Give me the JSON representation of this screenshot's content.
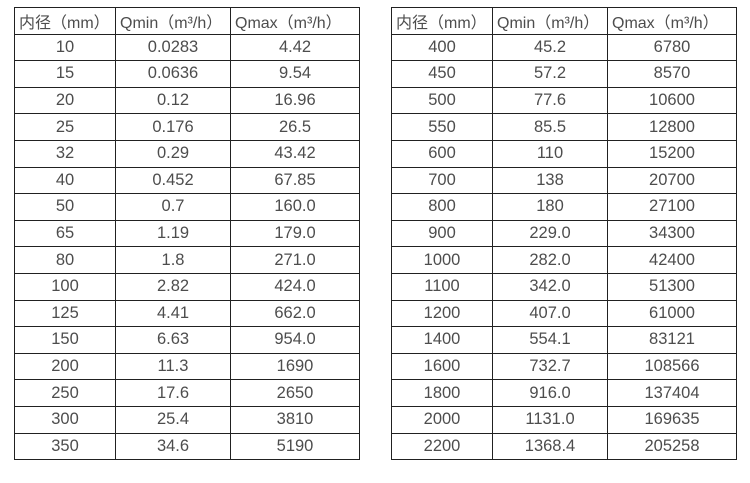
{
  "tables": [
    {
      "name": "diameter-flow-table-small",
      "headers": [
        "内径（mm）",
        "Qmin（m³/h）",
        "Qmax（m³/h）"
      ],
      "rows": [
        [
          "10",
          "0.0283",
          "4.42"
        ],
        [
          "15",
          "0.0636",
          "9.54"
        ],
        [
          "20",
          "0.12",
          "16.96"
        ],
        [
          "25",
          "0.176",
          "26.5"
        ],
        [
          "32",
          "0.29",
          "43.42"
        ],
        [
          "40",
          "0.452",
          "67.85"
        ],
        [
          "50",
          "0.7",
          "160.0"
        ],
        [
          "65",
          "1.19",
          "179.0"
        ],
        [
          "80",
          "1.8",
          "271.0"
        ],
        [
          "100",
          "2.82",
          "424.0"
        ],
        [
          "125",
          "4.41",
          "662.0"
        ],
        [
          "150",
          "6.63",
          "954.0"
        ],
        [
          "200",
          "11.3",
          "1690"
        ],
        [
          "250",
          "17.6",
          "2650"
        ],
        [
          "300",
          "25.4",
          "3810"
        ],
        [
          "350",
          "34.6",
          "5190"
        ]
      ]
    },
    {
      "name": "diameter-flow-table-large",
      "headers": [
        "内径（mm）",
        "Qmin（m³/h）",
        "Qmax（m³/h）"
      ],
      "rows": [
        [
          "400",
          "45.2",
          "6780"
        ],
        [
          "450",
          "57.2",
          "8570"
        ],
        [
          "500",
          "77.6",
          "10600"
        ],
        [
          "550",
          "85.5",
          "12800"
        ],
        [
          "600",
          "110",
          "15200"
        ],
        [
          "700",
          "138",
          "20700"
        ],
        [
          "800",
          "180",
          "27100"
        ],
        [
          "900",
          "229.0",
          "34300"
        ],
        [
          "1000",
          "282.0",
          "42400"
        ],
        [
          "1100",
          "342.0",
          "51300"
        ],
        [
          "1200",
          "407.0",
          "61000"
        ],
        [
          "1400",
          "554.1",
          "83121"
        ],
        [
          "1600",
          "732.7",
          "108566"
        ],
        [
          "1800",
          "916.0",
          "137404"
        ],
        [
          "2000",
          "1131.0",
          "169635"
        ],
        [
          "2200",
          "1368.4",
          "205258"
        ]
      ]
    }
  ],
  "colors": {
    "background": "#ffffff",
    "border": "#212121",
    "text": "#4d4d4d"
  }
}
